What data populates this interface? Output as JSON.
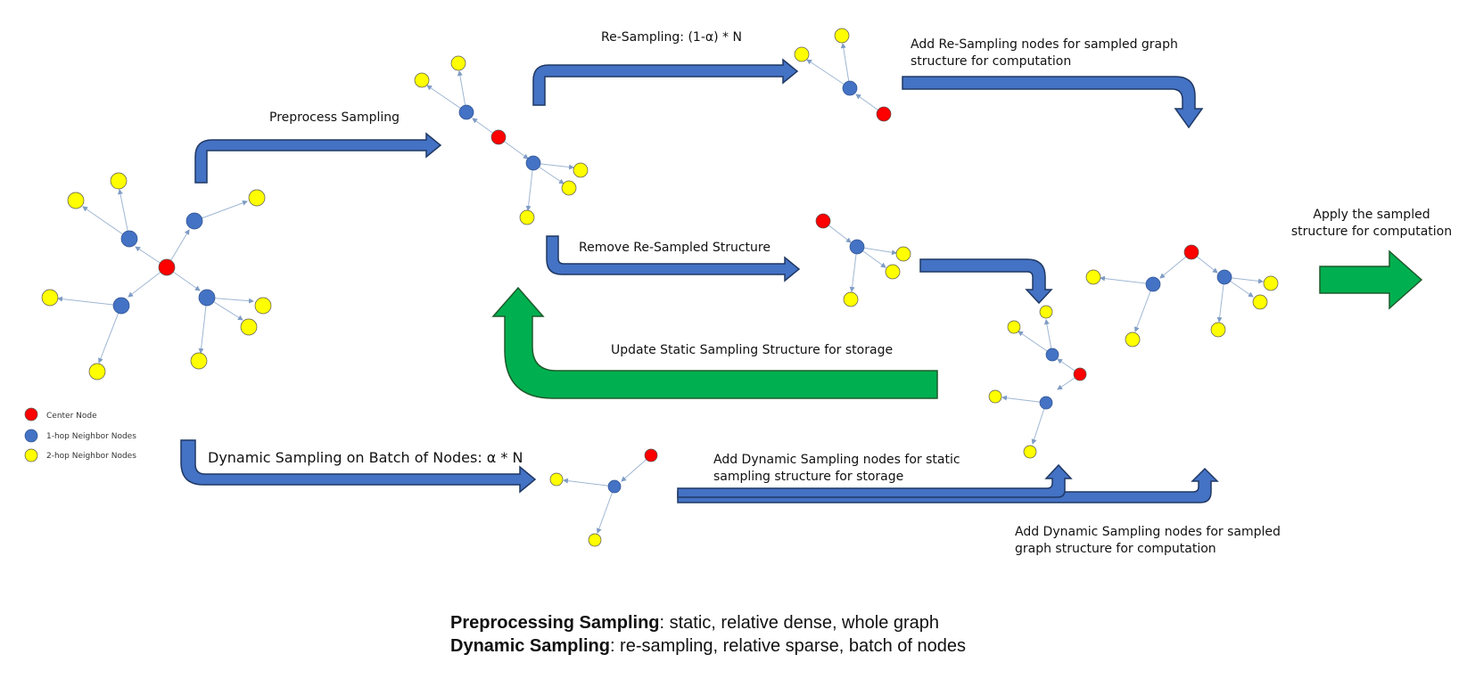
{
  "colors": {
    "center": "#ff0000",
    "hop1": "#4472c4",
    "hop2": "#ffff00",
    "arrow_blue": "#4472c4",
    "arrow_green": "#00b050"
  },
  "legend": {
    "center": "Center Node",
    "hop1": "1-hop Neighbor Nodes",
    "hop2": "2-hop Neighbor Nodes"
  },
  "labels": {
    "preprocess": "Preprocess Sampling",
    "resampling": "Re-Sampling: (1-α) * N",
    "add_resampling": [
      "Add Re-Sampling nodes for sampled graph",
      "structure for computation"
    ],
    "remove": "Remove Re-Sampled Structure",
    "update": "Update Static Sampling Structure for storage",
    "dynamic": "Dynamic Sampling on Batch of Nodes: α * N",
    "add_dynamic_storage": [
      "Add Dynamic Sampling nodes for static",
      "sampling structure for storage"
    ],
    "add_dynamic_compute": [
      "Add Dynamic Sampling nodes for sampled",
      "graph structure for computation"
    ],
    "apply": [
      "Apply the sampled",
      "structure for computation"
    ]
  },
  "summary": {
    "line1_bold": "Preprocessing Sampling",
    "line1_rest": ": static, relative dense, whole graph",
    "line2_bold": "Dynamic Sampling",
    "line2_rest": ": re-sampling, relative sparse, batch of nodes"
  }
}
